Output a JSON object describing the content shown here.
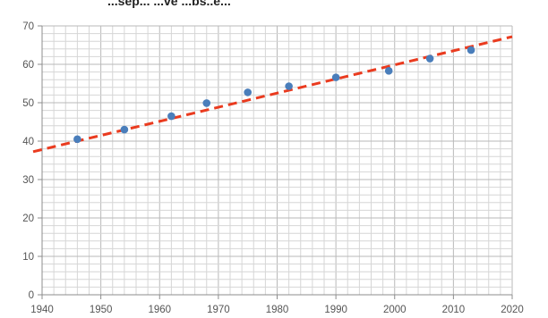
{
  "chart_data": {
    "type": "scatter",
    "title": "...sep... ...ve ...bs..e...",
    "xlabel": "",
    "ylabel": "",
    "xlim": [
      1940,
      2020
    ],
    "ylim": [
      0,
      70
    ],
    "x_ticks": [
      1940,
      1950,
      1960,
      1970,
      1980,
      1990,
      2000,
      2010,
      2020
    ],
    "y_ticks": [
      0,
      10,
      20,
      30,
      40,
      50,
      60,
      70
    ],
    "minor_x_step": 2,
    "minor_y_step": 2,
    "grid": true,
    "series": [
      {
        "kind": "points",
        "color": "#4a7ebb",
        "points": [
          {
            "x": 1946,
            "y": 40.5
          },
          {
            "x": 1954,
            "y": 43.0
          },
          {
            "x": 1962,
            "y": 46.5
          },
          {
            "x": 1968,
            "y": 49.9
          },
          {
            "x": 1975,
            "y": 52.7
          },
          {
            "x": 1982,
            "y": 54.3
          },
          {
            "x": 1990,
            "y": 56.6
          },
          {
            "x": 1999,
            "y": 58.3
          },
          {
            "x": 2006,
            "y": 61.5
          },
          {
            "x": 2013,
            "y": 63.7
          }
        ]
      },
      {
        "kind": "trendline",
        "style": "dashed",
        "color": "#ea3b1f",
        "x": [
          1940,
          2020
        ],
        "y": [
          37.8,
          67.2
        ]
      }
    ]
  }
}
